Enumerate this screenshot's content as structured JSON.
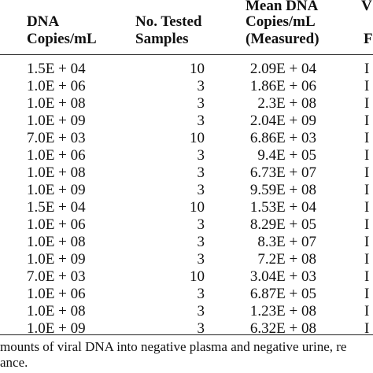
{
  "header": {
    "col1": [
      "DNA",
      "Copies/mL"
    ],
    "col2": [
      "No. Tested",
      "Samples"
    ],
    "col3": [
      "Mean DNA",
      "Copies/mL",
      "(Measured)"
    ],
    "col4": [
      "V",
      "",
      "F"
    ]
  },
  "rows": [
    {
      "input": "1.5E + 04",
      "tested": "10",
      "measured": "2.09E + 04",
      "last": "I"
    },
    {
      "input": "1.0E + 06",
      "tested": "3",
      "measured": "1.86E + 06",
      "last": "I"
    },
    {
      "input": "1.0E + 08",
      "tested": "3",
      "measured": "2.3E + 08",
      "last": "I"
    },
    {
      "input": "1.0E + 09",
      "tested": "3",
      "measured": "2.04E + 09",
      "last": "I"
    },
    {
      "input": "7.0E + 03",
      "tested": "10",
      "measured": "6.86E + 03",
      "last": "I"
    },
    {
      "input": "1.0E + 06",
      "tested": "3",
      "measured": "9.4E + 05",
      "last": "I"
    },
    {
      "input": "1.0E + 08",
      "tested": "3",
      "measured": "6.73E + 07",
      "last": "I"
    },
    {
      "input": "1.0E + 09",
      "tested": "3",
      "measured": "9.59E + 08",
      "last": "I"
    },
    {
      "input": "1.5E + 04",
      "tested": "10",
      "measured": "1.53E + 04",
      "last": "I"
    },
    {
      "input": "1.0E + 06",
      "tested": "3",
      "measured": "8.29E + 05",
      "last": "I"
    },
    {
      "input": "1.0E + 08",
      "tested": "3",
      "measured": "8.3E + 07",
      "last": "I"
    },
    {
      "input": "1.0E + 09",
      "tested": "3",
      "measured": "7.2E + 08",
      "last": "I"
    },
    {
      "input": "7.0E + 03",
      "tested": "10",
      "measured": "3.04E + 03",
      "last": "I"
    },
    {
      "input": "1.0E + 06",
      "tested": "3",
      "measured": "6.87E + 05",
      "last": "I"
    },
    {
      "input": "1.0E + 08",
      "tested": "3",
      "measured": "1.23E + 08",
      "last": "I"
    },
    {
      "input": "1.0E + 09",
      "tested": "3",
      "measured": "6.32E + 08",
      "last": "I"
    }
  ],
  "footnote": {
    "line1": "mounts of viral DNA into negative plasma and negative urine, re",
    "line2": "ance."
  }
}
